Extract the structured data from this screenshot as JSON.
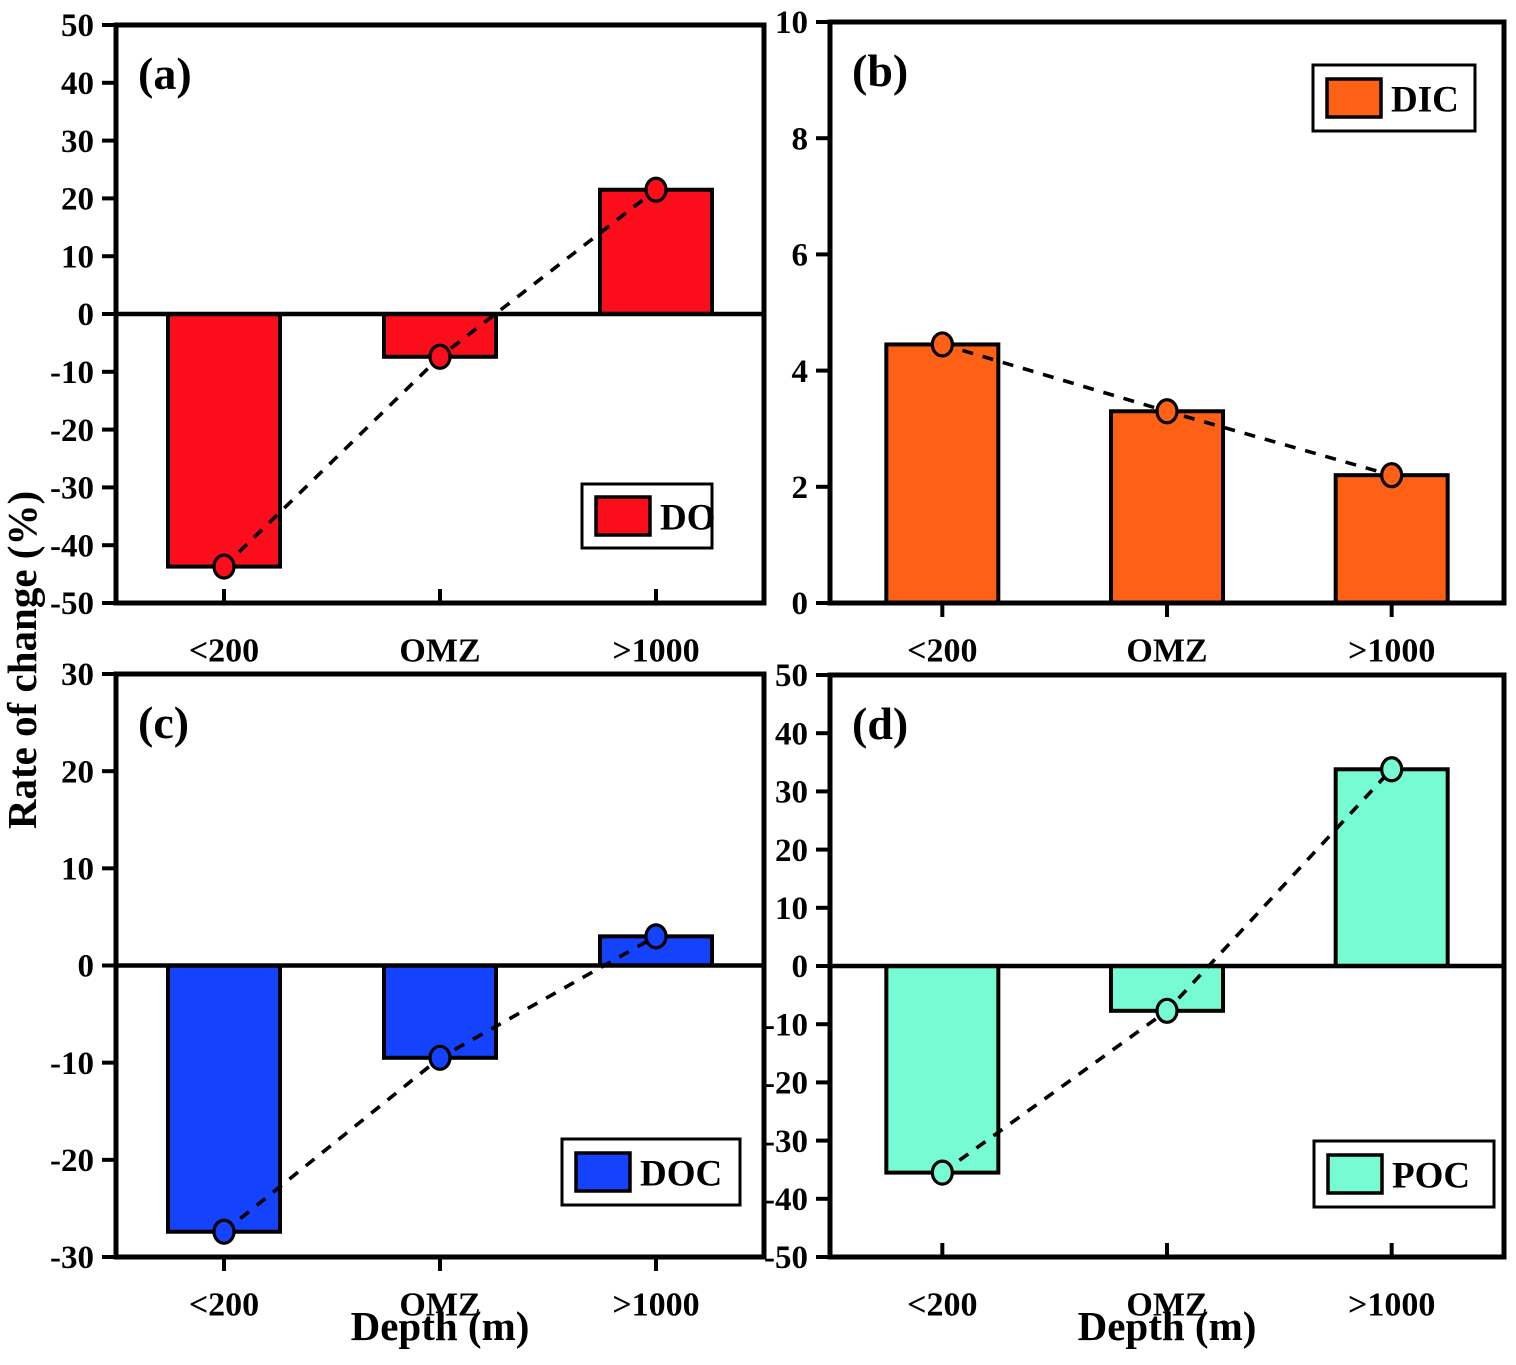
{
  "figure_labels": {
    "ylabel": "Rate of change (%)",
    "xlabel": "Depth (m)"
  },
  "accent_colors": {
    "axis": "#000000",
    "background": "#ffffff"
  },
  "chart_data": [
    {
      "type": "bar",
      "panel_label": "(a)",
      "legend": "DO",
      "bar_color": "#FB0D1B",
      "categories": [
        "<200",
        "OMZ",
        ">1000"
      ],
      "values": [
        -43.7,
        -7.4,
        21.5
      ],
      "overlay_line": {
        "style": "dashed",
        "markers": "circle",
        "marker_values": [
          -43.7,
          -7.4,
          21.5
        ]
      },
      "ylim": [
        -50,
        50
      ],
      "yticks": [
        -50,
        -40,
        -30,
        -20,
        -10,
        0,
        10,
        20,
        30,
        40,
        50
      ],
      "legend_position": "lower-right",
      "grid": false
    },
    {
      "type": "bar",
      "panel_label": "(b)",
      "legend": "DIC",
      "bar_color": "#FE6116",
      "categories": [
        "<200",
        "OMZ",
        ">1000"
      ],
      "values": [
        4.45,
        3.3,
        2.2
      ],
      "overlay_line": {
        "style": "dashed",
        "markers": "circle",
        "marker_values": [
          4.45,
          3.3,
          2.2
        ]
      },
      "ylim": [
        0,
        10
      ],
      "yticks": [
        0,
        2,
        4,
        6,
        8,
        10
      ],
      "legend_position": "upper-right",
      "grid": false
    },
    {
      "type": "bar",
      "panel_label": "(c)",
      "legend": "DOC",
      "bar_color": "#1542FD",
      "categories": [
        "<200",
        "OMZ",
        ">1000"
      ],
      "values": [
        -27.4,
        -9.5,
        3.0
      ],
      "overlay_line": {
        "style": "dashed",
        "markers": "circle",
        "marker_values": [
          -27.4,
          -9.5,
          3.0
        ]
      },
      "ylim": [
        -30,
        30
      ],
      "yticks": [
        -30,
        -20,
        -10,
        0,
        10,
        20,
        30
      ],
      "legend_position": "lower-right",
      "grid": false
    },
    {
      "type": "bar",
      "panel_label": "(d)",
      "legend": "POC",
      "bar_color": "#77FBD2",
      "categories": [
        "<200",
        "OMZ",
        ">1000"
      ],
      "values": [
        -35.5,
        -7.7,
        33.8
      ],
      "overlay_line": {
        "style": "dashed",
        "markers": "circle",
        "marker_values": [
          -35.5,
          -7.7,
          33.8
        ]
      },
      "ylim": [
        -50,
        50
      ],
      "yticks": [
        -50,
        -40,
        -30,
        -20,
        -10,
        0,
        10,
        20,
        30,
        40,
        50
      ],
      "legend_position": "lower-right",
      "grid": false
    }
  ]
}
